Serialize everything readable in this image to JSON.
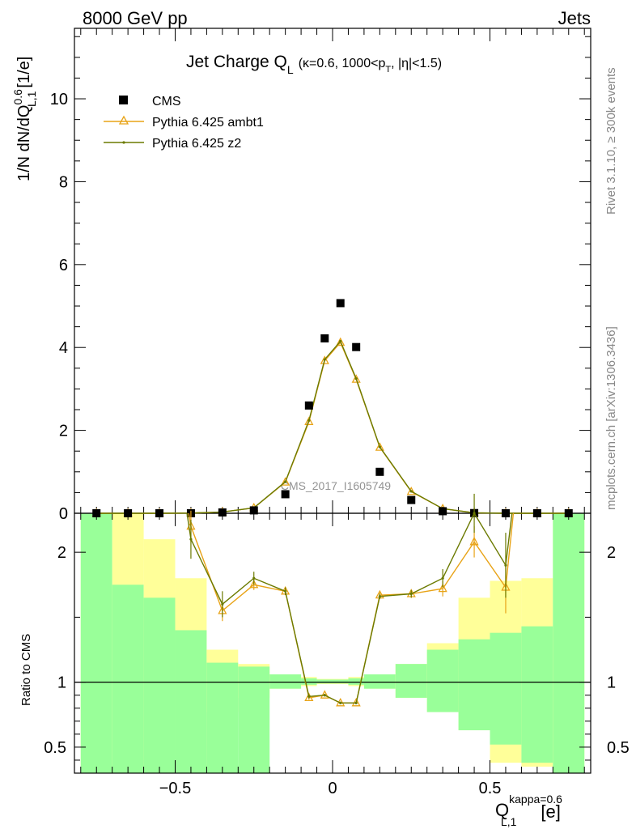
{
  "header": {
    "left": "8000 GeV pp",
    "right": "Jets"
  },
  "side_text": {
    "rivet": "Rivet 3.1.10, ≥ 300k events",
    "mcplots": "mcplots.cern.ch [arXiv:1306.3436]"
  },
  "watermark": "CMS_2017_I1605749",
  "colors": {
    "cms": "#000000",
    "ambt1": "#e8a317",
    "z2": "#6b7a00",
    "band_green": "#99ff99",
    "band_yellow": "#ffff99"
  },
  "chart_data": [
    {
      "type": "scatter",
      "title": "Jet Charge Q",
      "title_sub": "L",
      "title_tail": "(κ=0.6, 1000<p",
      "title_tail_sub": "T",
      "title_tail_end": ", |η|<1.5)",
      "ylabel": "1/N dN/dQ",
      "ylabel_sup": "0.6",
      "ylabel_sub": "L,1",
      "ylabel_unit": "[1/e]",
      "xlim": [
        -0.82,
        0.82
      ],
      "ylim": [
        0,
        11.7
      ],
      "yticks": [
        0,
        2,
        4,
        6,
        8,
        10
      ],
      "xticks": [
        -0.5,
        0,
        0.5
      ],
      "legend_position": "top-left",
      "x": [
        -0.75,
        -0.65,
        -0.55,
        -0.45,
        -0.35,
        -0.25,
        -0.15,
        -0.075,
        -0.025,
        0.025,
        0.075,
        0.15,
        0.25,
        0.35,
        0.45,
        0.55,
        0.65,
        0.75
      ],
      "series": [
        {
          "name": "CMS",
          "values": [
            0.0,
            0.0,
            0.0,
            0.0,
            0.02,
            0.07,
            0.46,
            2.6,
            4.22,
            5.07,
            4.01,
            1.0,
            0.32,
            0.05,
            0.005,
            0.0,
            0.0,
            0.0
          ]
        },
        {
          "name": "Pythia 6.425 ambt1",
          "values": [
            0.0,
            0.0,
            0.0,
            0.005,
            0.03,
            0.13,
            0.75,
            2.21,
            3.68,
            4.12,
            3.23,
            1.59,
            0.52,
            0.11,
            0.01,
            0.0,
            0.0,
            0.0
          ]
        },
        {
          "name": "Pythia 6.425 z2",
          "values": [
            0.0,
            0.0,
            0.0,
            0.005,
            0.03,
            0.13,
            0.76,
            2.24,
            3.71,
            4.15,
            3.25,
            1.6,
            0.53,
            0.11,
            0.011,
            0.0,
            0.0,
            0.0
          ]
        }
      ]
    },
    {
      "type": "line",
      "ylabel": "Ratio to CMS",
      "xlabel": "Q",
      "xlabel_sup": "kappa=0.6",
      "xlabel_sub": "L,1",
      "xlabel_unit": "[e]",
      "xlim": [
        -0.82,
        0.82
      ],
      "ylim": [
        0.3,
        2.3
      ],
      "yticks": [
        0.5,
        1,
        2
      ],
      "xticks": [
        -0.5,
        0,
        0.5
      ],
      "bins": [
        -0.8,
        -0.7,
        -0.6,
        -0.5,
        -0.4,
        -0.3,
        -0.2,
        -0.1,
        -0.05,
        0,
        0.05,
        0.1,
        0.2,
        0.3,
        0.4,
        0.5,
        0.6,
        0.7,
        0.8
      ],
      "band_green": [
        [
          0.3,
          2.3
        ],
        [
          0.3,
          1.75
        ],
        [
          0.3,
          1.65
        ],
        [
          0.3,
          1.4
        ],
        [
          0.3,
          1.15
        ],
        [
          0.3,
          1.12
        ],
        [
          0.95,
          1.06
        ],
        [
          0.98,
          1.03
        ],
        [
          0.99,
          1.02
        ],
        [
          0.99,
          1.02
        ],
        [
          0.98,
          1.03
        ],
        [
          0.95,
          1.06
        ],
        [
          0.88,
          1.14
        ],
        [
          0.77,
          1.25
        ],
        [
          0.63,
          1.33
        ],
        [
          0.52,
          1.38
        ],
        [
          0.38,
          1.43
        ],
        [
          0.3,
          2.3
        ]
      ],
      "band_yellow": [
        [
          0.3,
          2.3
        ],
        [
          0.3,
          2.3
        ],
        [
          0.3,
          2.1
        ],
        [
          0.3,
          1.8
        ],
        [
          0.77,
          1.25
        ],
        [
          0.88,
          1.14
        ],
        [
          0.95,
          1.06
        ],
        [
          0.97,
          1.04
        ],
        [
          0.985,
          1.025
        ],
        [
          0.985,
          1.025
        ],
        [
          0.97,
          1.04
        ],
        [
          0.95,
          1.06
        ],
        [
          0.88,
          1.14
        ],
        [
          0.77,
          1.3
        ],
        [
          0.63,
          1.65
        ],
        [
          0.38,
          1.78
        ],
        [
          0.35,
          1.8
        ],
        [
          0.3,
          2.3
        ]
      ],
      "x": [
        -0.45,
        -0.35,
        -0.25,
        -0.15,
        -0.075,
        -0.025,
        0.025,
        0.075,
        0.15,
        0.25,
        0.35,
        0.45,
        0.55
      ],
      "series": [
        {
          "name": "Pythia 6.425 ambt1",
          "values": [
            2.2,
            1.55,
            1.75,
            1.7,
            0.88,
            0.9,
            0.84,
            0.84,
            1.67,
            1.68,
            1.72,
            2.08,
            1.73
          ],
          "errors": [
            0.12,
            0.08,
            0.04,
            0.03,
            0.015,
            0.01,
            0.01,
            0.01,
            0.02,
            0.03,
            0.06,
            0.12,
            0.2
          ]
        },
        {
          "name": "Pythia 6.425 z2",
          "values": [
            2.1,
            1.6,
            1.8,
            1.7,
            0.89,
            0.9,
            0.84,
            0.84,
            1.66,
            1.68,
            1.8,
            2.3,
            1.9
          ],
          "errors": [
            0.15,
            0.1,
            0.05,
            0.03,
            0.015,
            0.01,
            0.01,
            0.01,
            0.02,
            0.03,
            0.07,
            0.15,
            0.25
          ]
        }
      ]
    }
  ]
}
